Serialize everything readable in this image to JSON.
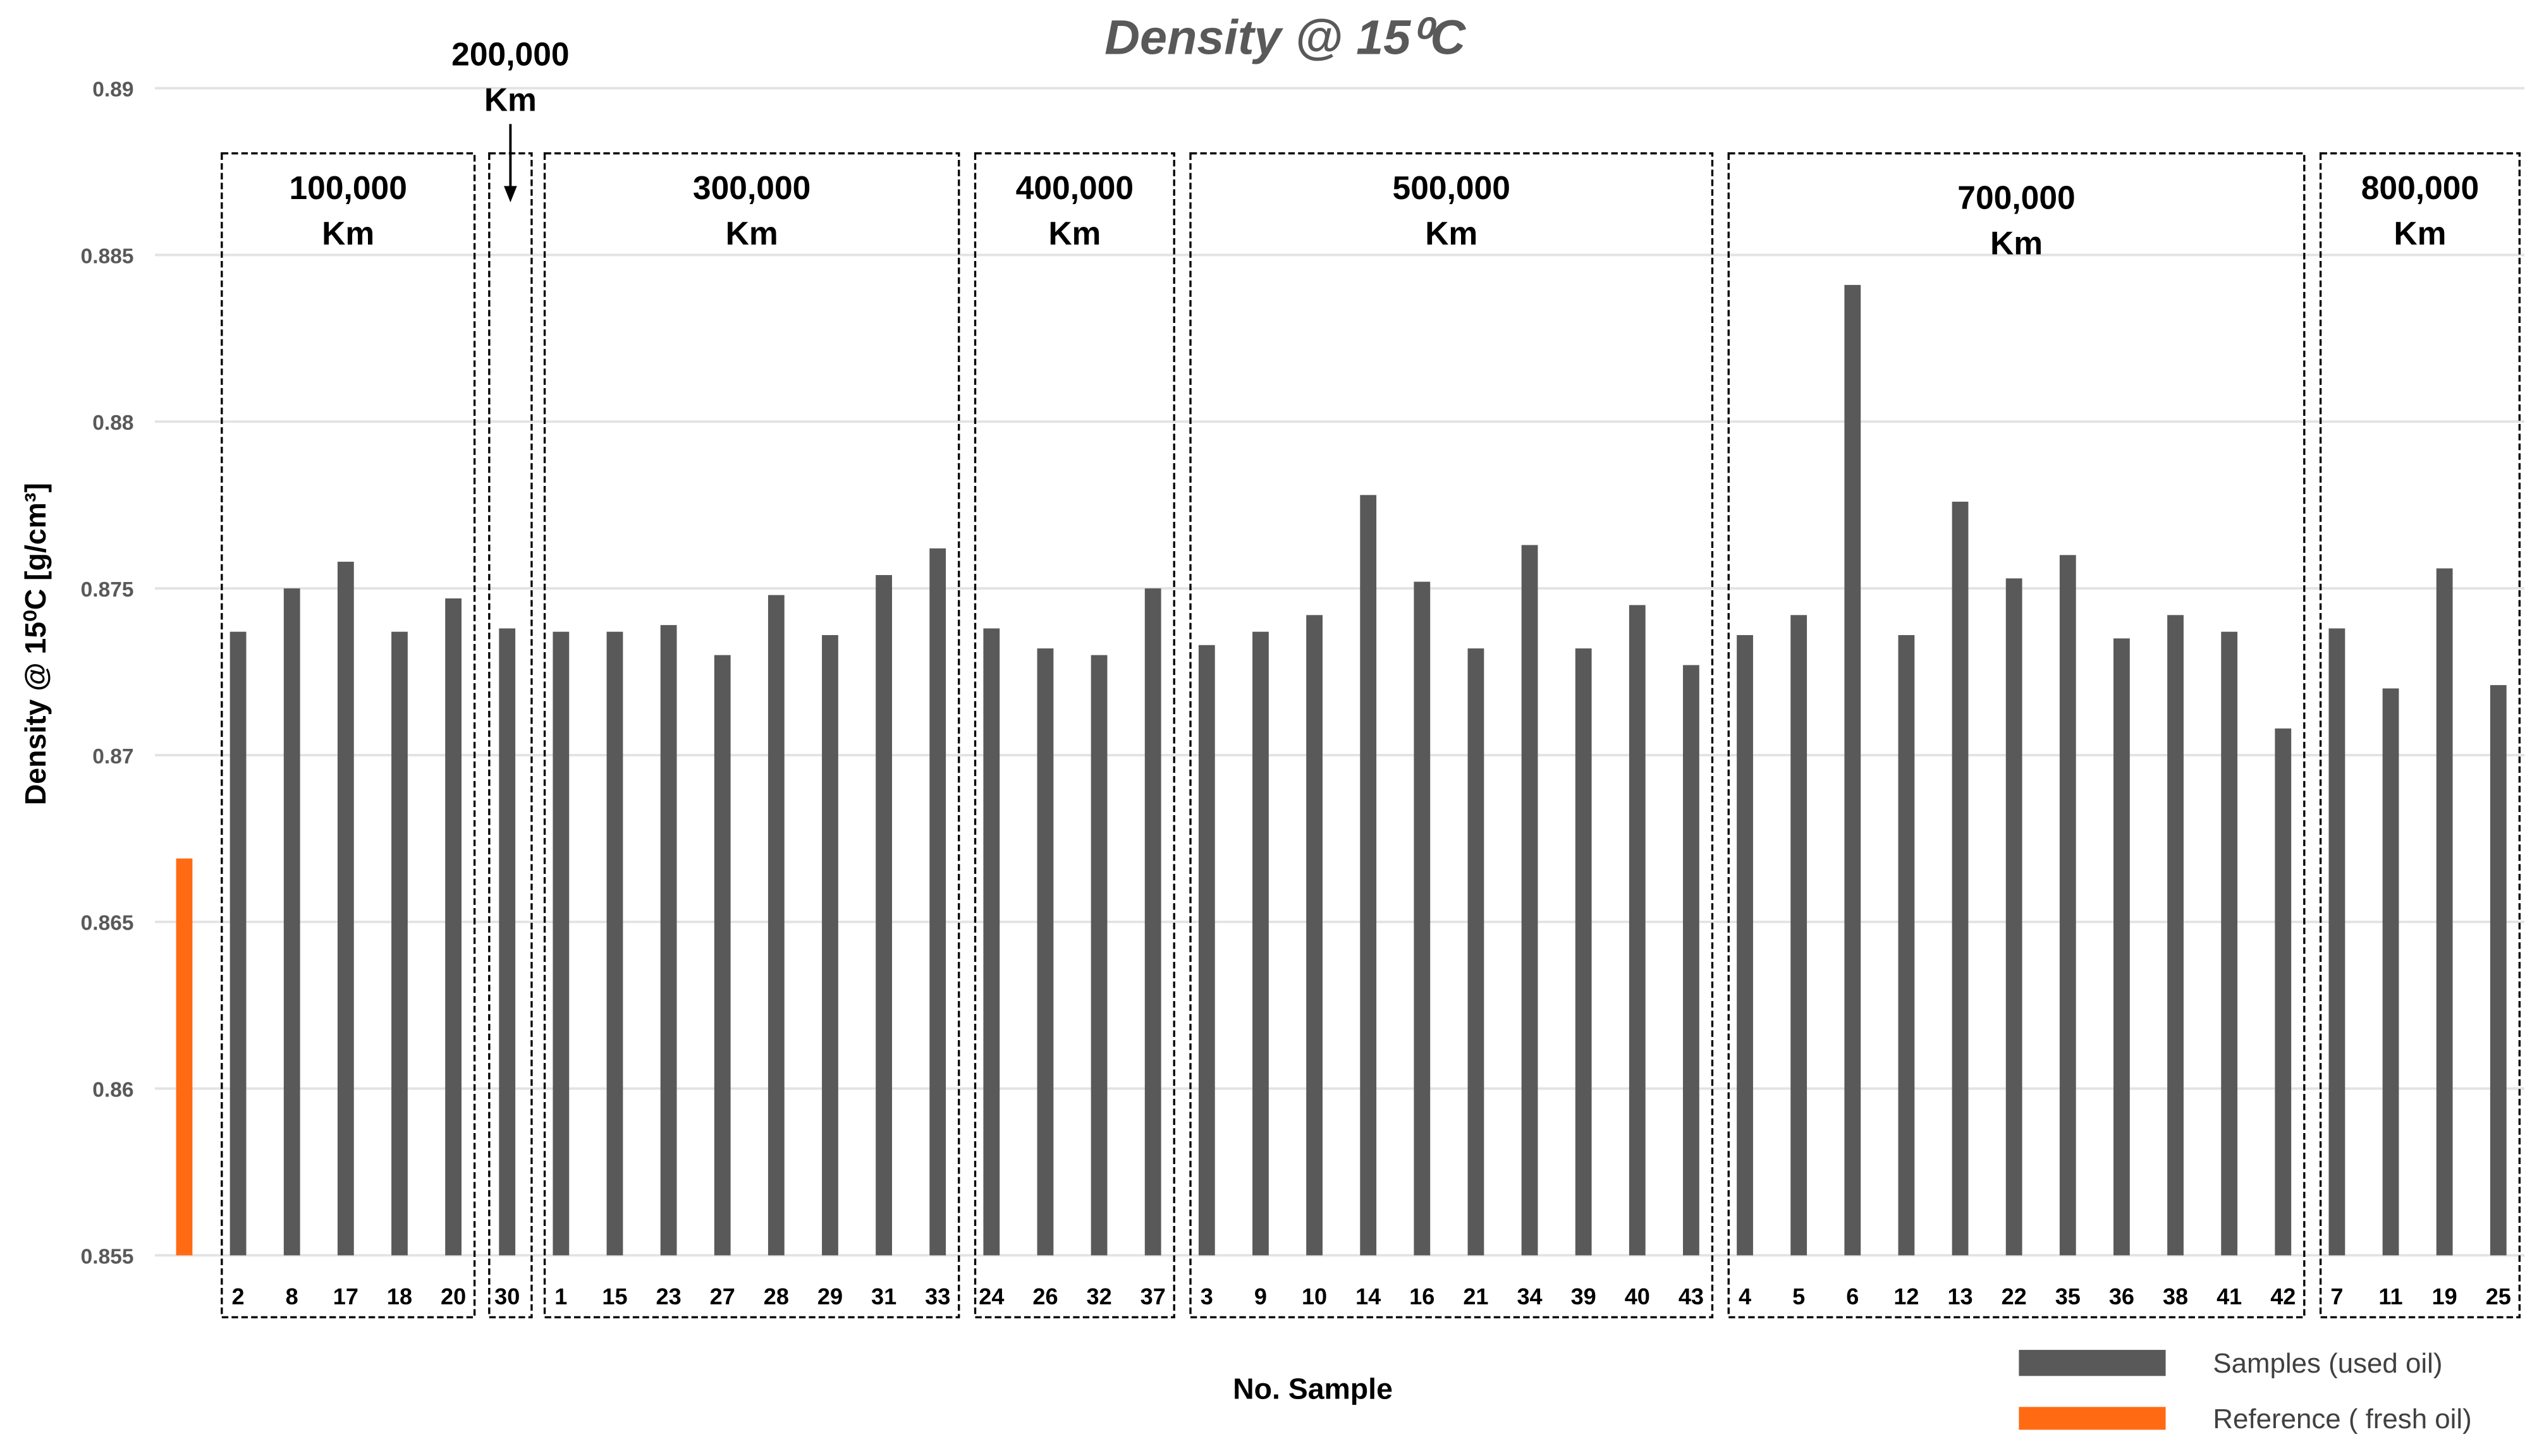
{
  "chart_data": {
    "type": "bar",
    "title": "Density @ 15⁰C",
    "xlabel": "No. Sample",
    "ylabel": "Density @ 15⁰C [g/cm³]",
    "ylim": [
      0.855,
      0.89
    ],
    "yticks": [
      "0.855",
      "0.86",
      "0.865",
      "0.87",
      "0.875",
      "0.88",
      "0.885",
      "0.89"
    ],
    "grid": true,
    "legend_placement": "bottom-right",
    "colors": {
      "samples": "#595959",
      "reference": "#ff6a13"
    },
    "reference": {
      "name": "Reference ( fresh oil)",
      "value": 0.8669
    },
    "samples": {
      "name": "Samples (used oil)",
      "categories": [
        "2",
        "8",
        "17",
        "18",
        "20",
        "30",
        "1",
        "15",
        "23",
        "27",
        "28",
        "29",
        "31",
        "33",
        "24",
        "26",
        "32",
        "37",
        "3",
        "9",
        "10",
        "14",
        "16",
        "21",
        "34",
        "39",
        "40",
        "43",
        "4",
        "5",
        "6",
        "12",
        "13",
        "22",
        "35",
        "36",
        "38",
        "41",
        "42",
        "7",
        "11",
        "19",
        "25"
      ],
      "values": [
        0.8737,
        0.875,
        0.8758,
        0.8737,
        0.8747,
        0.8738,
        0.8737,
        0.8737,
        0.8739,
        0.873,
        0.8748,
        0.8736,
        0.8754,
        0.8762,
        0.8738,
        0.8732,
        0.873,
        0.875,
        0.8733,
        0.8737,
        0.8742,
        0.8778,
        0.8752,
        0.8732,
        0.8763,
        0.8732,
        0.8745,
        0.8727,
        0.8736,
        0.8742,
        0.8841,
        0.8736,
        0.8776,
        0.8753,
        0.876,
        0.8735,
        0.8742,
        0.8737,
        0.8708,
        0.8738,
        0.872,
        0.8756,
        0.8721
      ]
    },
    "groups": [
      {
        "label": "100,000",
        "unit": "Km",
        "count": 5
      },
      {
        "label": "200,000",
        "unit": "Km",
        "count": 1
      },
      {
        "label": "300,000",
        "unit": "Km",
        "count": 8
      },
      {
        "label": "400,000",
        "unit": "Km",
        "count": 4
      },
      {
        "label": "500,000",
        "unit": "Km",
        "count": 10
      },
      {
        "label": "700,000",
        "unit": "Km",
        "count": 11
      },
      {
        "label": "800,000",
        "unit": "Km",
        "count": 4
      }
    ]
  }
}
